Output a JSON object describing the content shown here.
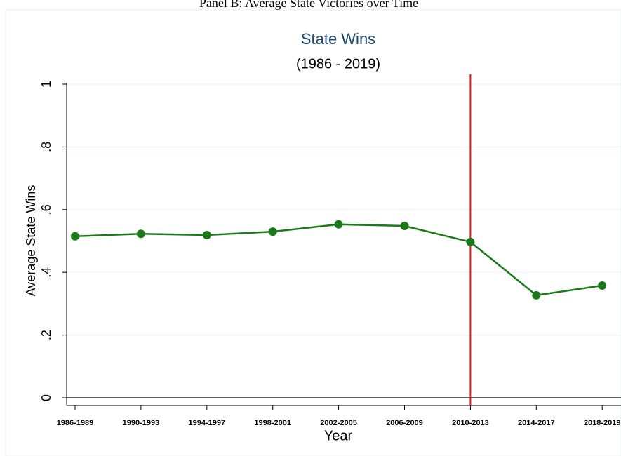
{
  "header": "Panel B: Average State Victories over Time",
  "chart_data": {
    "type": "line",
    "title": "State Wins",
    "subtitle": "(1986 - 2019)",
    "x_label": "Year",
    "y_label": "Average State Wins",
    "categories": [
      "1986-1989",
      "1990-1993",
      "1994-1997",
      "1998-2001",
      "2002-2005",
      "2006-2009",
      "2010-2013",
      "2014-2017",
      "2018-2019"
    ],
    "values": [
      0.515,
      0.523,
      0.519,
      0.53,
      0.553,
      0.548,
      0.497,
      0.327,
      0.358
    ],
    "color": "#1a7a1a",
    "ylim": [
      0,
      1
    ],
    "yticks": [
      0,
      {
        "value": 0.2,
        "label": ".2"
      },
      {
        "value": 0.4,
        "label": ".4"
      },
      {
        "value": 0.6,
        "label": ".6"
      },
      {
        "value": 0.8,
        "label": ".8"
      },
      1
    ],
    "grid": true,
    "vline": {
      "at": "2010-2013",
      "color": "#e8141a"
    }
  }
}
